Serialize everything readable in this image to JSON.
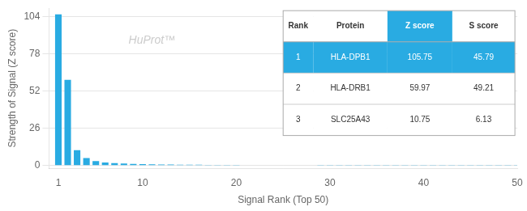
{
  "chart_data": {
    "type": "bar",
    "x": [
      1,
      2,
      3,
      4,
      5,
      6,
      7,
      8,
      9,
      10,
      11,
      12,
      13,
      14,
      15,
      16,
      17,
      18,
      19,
      20,
      21,
      22,
      23,
      24,
      25,
      26,
      27,
      28,
      29,
      30,
      31,
      32,
      33,
      34,
      35,
      36,
      37,
      38,
      39,
      40,
      41,
      42,
      43,
      44,
      45,
      46,
      47,
      48,
      49,
      50
    ],
    "values": [
      105.75,
      59.97,
      10.75,
      5.2,
      3.0,
      2.1,
      1.6,
      1.3,
      1.1,
      0.95,
      0.82,
      0.72,
      0.64,
      0.57,
      0.51,
      0.46,
      0.42,
      0.38,
      0.35,
      0.32,
      0.29,
      0.27,
      0.25,
      0.23,
      0.21,
      0.19,
      0.18,
      0.17,
      0.16,
      0.15,
      0.14,
      0.13,
      0.12,
      0.11,
      0.1,
      0.09,
      0.09,
      0.08,
      0.08,
      0.07,
      0.07,
      0.06,
      0.06,
      0.05,
      0.05,
      0.05,
      0.04,
      0.04,
      0.04,
      0.03
    ],
    "color": "#29ABE2",
    "xlabel": "Signal Rank (Top 50)",
    "ylabel": "Strength of Signal (Z score)",
    "xlim": [
      0,
      50
    ],
    "xticks": [
      1,
      10,
      20,
      30,
      40,
      50
    ],
    "ylim": [
      -2,
      110
    ],
    "yticks": [
      0,
      26,
      52,
      78,
      104
    ],
    "grid": true,
    "annotations": [
      "HuProt™"
    ],
    "table": {
      "headers": [
        "Rank",
        "Protein",
        "Z score",
        "S score"
      ],
      "rows": [
        [
          "1",
          "HLA-DPB1",
          "105.75",
          "45.79"
        ],
        [
          "2",
          "HLA-DRB1",
          "59.97",
          "49.21"
        ],
        [
          "3",
          "SLC25A43",
          "10.75",
          "6.13"
        ]
      ],
      "color": "#29ABE2"
    }
  }
}
